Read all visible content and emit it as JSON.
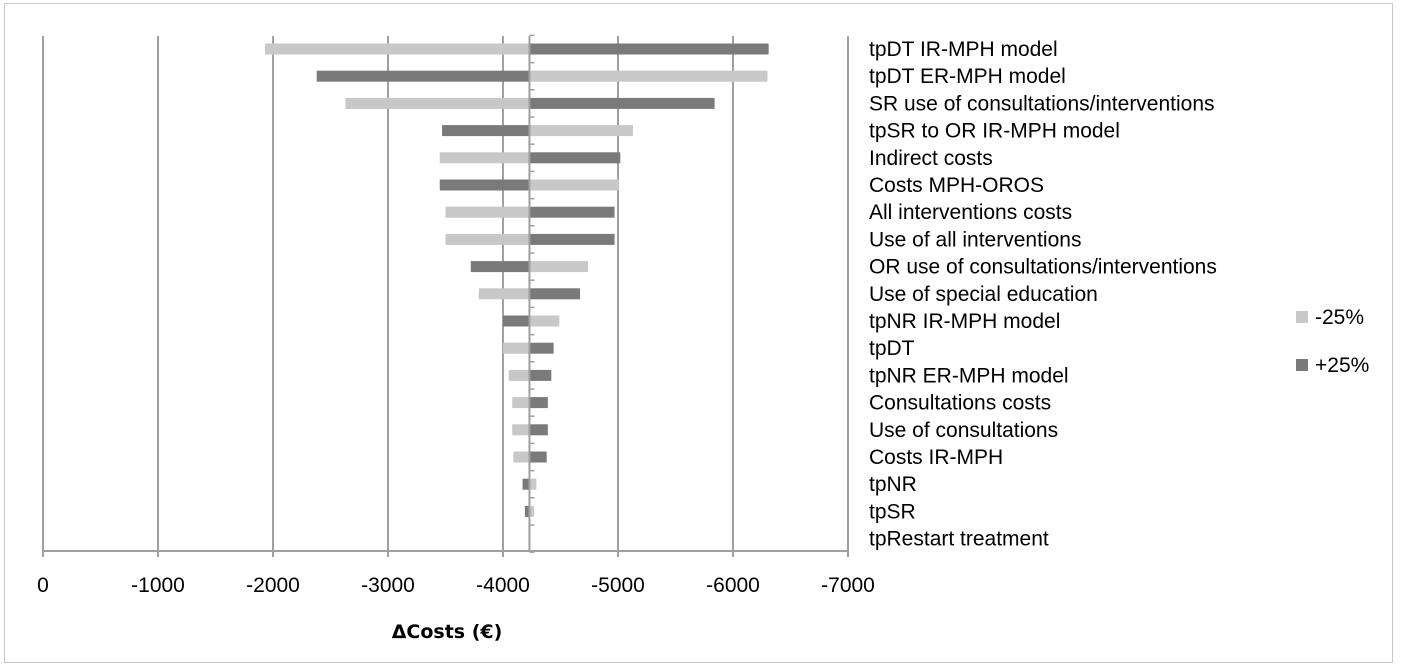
{
  "chart_data": {
    "type": "bar",
    "orientation": "horizontal",
    "title": "",
    "xlabel": "ΔCosts (€)",
    "ylabel": "",
    "xlim": [
      0,
      -7000
    ],
    "xticks": [
      0,
      -1000,
      -2000,
      -3000,
      -4000,
      -5000,
      -6000,
      -7000
    ],
    "base_value": -4230,
    "grid": "vertical",
    "legend_position": "right",
    "categories": [
      "tpDT IR-MPH model",
      "tpDT ER-MPH model",
      "SR use of consultations/interventions",
      "tpSR to OR IR-MPH model",
      "Indirect costs",
      "Costs MPH-OROS",
      "All interventions costs",
      "Use of all interventions",
      "OR use of consultations/interventions",
      "Use of special education",
      "tpNR IR-MPH model",
      "tpDT",
      "tpNR ER-MPH model",
      "Consultations costs",
      "Use of consultations",
      "Costs IR-MPH",
      "tpNR",
      "tpSR",
      "tpRestart treatment"
    ],
    "series": [
      {
        "name": "-25%",
        "color": "#c8c8c8",
        "values": [
          -1930,
          -6300,
          -2630,
          -5130,
          -3450,
          -5010,
          -3500,
          -3500,
          -4740,
          -3790,
          -4490,
          -4000,
          -4050,
          -4080,
          -4080,
          -4090,
          -4290,
          -4270,
          -4230
        ]
      },
      {
        "name": "+25%",
        "color": "#7a7a7a",
        "values": [
          -6310,
          -2380,
          -5840,
          -3470,
          -5020,
          -3450,
          -4970,
          -4970,
          -3720,
          -4670,
          -4000,
          -4440,
          -4420,
          -4390,
          -4390,
          -4380,
          -4170,
          -4190,
          -4230
        ]
      }
    ]
  }
}
